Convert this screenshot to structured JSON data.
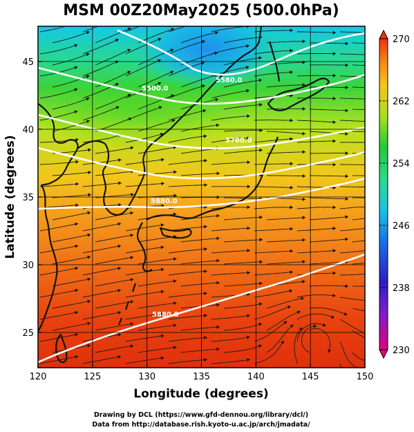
{
  "title": "MSM 00Z20May2025 (500.0hPa)",
  "xlabel": "Longitude (degrees)",
  "ylabel": "Latitude  (degrees)",
  "credits": [
    "Drawing by DCL (https://www.gfd-dennou.org/library/dcl/)",
    "Data from http://database.rish.kyoto-u.ac.jp/arch/jmadata/"
  ],
  "map": {
    "lon_range": [
      120,
      150
    ],
    "lat_range": [
      22.4,
      47.6
    ],
    "lon_ticks": [
      "120",
      "125",
      "130",
      "135",
      "140",
      "145",
      "150"
    ],
    "lat_ticks": [
      "25",
      "30",
      "35",
      "40",
      "45"
    ],
    "lon_tick_values": [
      120,
      125,
      130,
      135,
      140,
      145,
      150
    ],
    "lat_tick_values": [
      25,
      30,
      35,
      40,
      45
    ],
    "shaded_field": "temperature (K)",
    "vectors": "streamlines of wind"
  },
  "colorbar": {
    "range": [
      230,
      270
    ],
    "labels": [
      "270",
      "262",
      "254",
      "246",
      "238",
      "230"
    ],
    "label_values": [
      270,
      262,
      254,
      246,
      238,
      230
    ],
    "colors": [
      "#e3007e",
      "#2b1fc4",
      "#1aa0e6",
      "#2ed9a8",
      "#22c93a",
      "#c8e61e",
      "#f6a51e",
      "#e8350e"
    ]
  },
  "contours": [
    {
      "label": "5880.0",
      "label_lon": 123.5,
      "label_lat": 35.5
    },
    {
      "label": "5700.0",
      "label_lon": 133.5,
      "label_lat": 38.5
    },
    {
      "label": "5580.0",
      "label_lon": 137.5,
      "label_lat": 43.5
    },
    {
      "label": "5500.0",
      "label_lon": 131.5,
      "label_lat": 43.5
    }
  ]
}
